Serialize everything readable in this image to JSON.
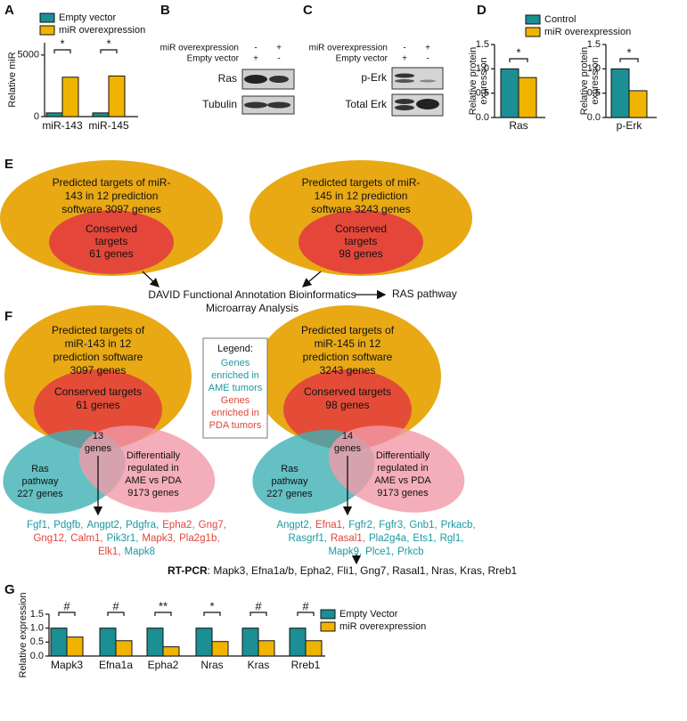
{
  "chart_data": [
    {
      "type": "bar",
      "panel": "A",
      "y_label": "Relative miR",
      "categories": [
        "miR-143",
        "miR-145"
      ],
      "series": [
        {
          "name": "Empty vector",
          "color": "#1b8f93",
          "values": [
            300,
            300
          ]
        },
        {
          "name": "miR overexpression",
          "color": "#f0b400",
          "values": [
            3200,
            3300
          ]
        }
      ],
      "ylim": [
        0,
        6000
      ],
      "yticks": [
        0,
        5000
      ],
      "annotations": [
        "*",
        "*"
      ],
      "legend": "top-left"
    },
    {
      "type": "bar",
      "panel": "D",
      "y_label": [
        "Relative protein",
        "expression"
      ],
      "categories": [
        "Ras"
      ],
      "series": [
        {
          "name": "Control",
          "color": "#1b8f93",
          "values": [
            1.0
          ]
        },
        {
          "name": "miR overexpression",
          "color": "#f0b400",
          "values": [
            0.82
          ]
        }
      ],
      "ylim": [
        0,
        1.5
      ],
      "yticks": [
        {
          "value": 0,
          "label": "0.0"
        },
        {
          "value": 0.5,
          "label": "0.5"
        },
        {
          "value": 1,
          "label": "1.0"
        },
        {
          "value": 1.5,
          "label": "1.5"
        }
      ],
      "annotations": [
        "*"
      ],
      "legend": "top-right"
    },
    {
      "type": "bar",
      "y_label": [
        "Relative protein",
        "expression"
      ],
      "categories": [
        "p-Erk"
      ],
      "series": [
        {
          "color": "#1b8f93",
          "values": [
            1.0
          ]
        },
        {
          "color": "#f0b400",
          "values": [
            0.55
          ]
        }
      ],
      "ylim": [
        0,
        1.5
      ],
      "yticks": [
        {
          "value": 0,
          "label": "0.0"
        },
        {
          "value": 0.5,
          "label": "0.5"
        },
        {
          "value": 1,
          "label": "1.0"
        },
        {
          "value": 1.5,
          "label": "1.5"
        }
      ],
      "annotations": [
        "*"
      ]
    },
    {
      "type": "bar",
      "panel": "G",
      "y_label": "Relative expression",
      "categories": [
        "Mapk3",
        "Efna1a",
        "Epha2",
        "Nras",
        "Kras",
        "Rreb1"
      ],
      "series": [
        {
          "name": "Empty Vector",
          "color": "#1b8f93",
          "values": [
            1.0,
            1.0,
            1.0,
            1.0,
            1.0,
            1.0
          ]
        },
        {
          "name": "miR overexpression",
          "color": "#f0b400",
          "values": [
            0.68,
            0.55,
            0.33,
            0.52,
            0.55,
            0.55
          ]
        }
      ],
      "ylim": [
        0,
        1.5
      ],
      "yticks": [
        {
          "value": 0,
          "label": "0.0"
        },
        {
          "value": 0.5,
          "label": "0.5"
        },
        {
          "value": 1,
          "label": "1.0"
        },
        {
          "value": 1.5,
          "label": "1.5"
        }
      ],
      "annotations": [
        "#",
        "#",
        "**",
        "*",
        "#",
        "#"
      ],
      "legend": "right"
    }
  ],
  "panel_B": {
    "label": "B",
    "conditions": [
      {
        "name": "miR overexpression",
        "signs": [
          "-",
          "+"
        ]
      },
      {
        "name": "Empty vector",
        "signs": [
          "+",
          "-"
        ]
      }
    ],
    "bands": [
      "Ras",
      "Tubulin"
    ]
  },
  "panel_C": {
    "label": "C",
    "conditions": [
      {
        "name": "miR overexpression",
        "signs": [
          "-",
          "+"
        ]
      },
      {
        "name": "Empty vector",
        "signs": [
          "+",
          "-"
        ]
      }
    ],
    "bands": [
      "p-Erk",
      "Total Erk"
    ]
  },
  "panel_E": {
    "label": "E",
    "sets": [
      {
        "outer": [
          "Predicted targets of miR-",
          "143 in 12 prediction",
          "software 3097 genes"
        ],
        "inner": [
          "Conserved",
          "targets",
          "61 genes"
        ]
      },
      {
        "outer": [
          "Predicted targets of miR-",
          "145 in 12 prediction",
          "software 3243 genes"
        ],
        "inner": [
          "Conserved",
          "targets",
          "98 genes"
        ]
      }
    ],
    "analysis": [
      "DAVID Functional Annotation Bioinformatics",
      "Microarray Analysis"
    ],
    "result": "RAS pathway"
  },
  "panel_F": {
    "label": "F",
    "legend": {
      "title": "Legend:",
      "groups": [
        {
          "lines": [
            "Genes",
            "enriched in",
            "AME tumors"
          ],
          "color": "#1a9aa0"
        },
        {
          "lines": [
            "Genes",
            "enriched in",
            "PDA tumors"
          ],
          "color": "#e0463c"
        }
      ]
    },
    "venns": [
      {
        "predicted": [
          "Predicted targets of",
          "miR-143 in 12",
          "prediction software",
          "3097 genes"
        ],
        "conserved": [
          "Conserved targets",
          "61 genes"
        ],
        "overlap": [
          "13",
          "genes"
        ],
        "ras": [
          "Ras",
          "pathway",
          "227 genes"
        ],
        "diff": [
          "Differentially",
          "regulated in",
          "AME vs PDA",
          "9173 genes"
        ],
        "genes": [
          [
            {
              "name": "Fgf1,",
              "group": 0
            },
            {
              "name": "Pdgfb,",
              "group": 0
            },
            {
              "name": "Angpt2,",
              "group": 0
            },
            {
              "name": "Pdgfra,",
              "group": 0
            },
            {
              "name": "Epha2,",
              "group": 1
            },
            {
              "name": "Gng7,",
              "group": 1
            }
          ],
          [
            {
              "name": "Gng12,",
              "group": 1
            },
            {
              "name": "Calm1,",
              "group": 1
            },
            {
              "name": "Pik3r1,",
              "group": 0
            },
            {
              "name": "Mapk3,",
              "group": 1
            },
            {
              "name": "Pla2g1b,",
              "group": 1
            }
          ],
          [
            {
              "name": "Elk1,",
              "group": 1
            },
            {
              "name": "Mapk8",
              "group": 0
            }
          ]
        ]
      },
      {
        "predicted": [
          "Predicted targets of",
          "miR-145 in 12",
          "prediction software",
          "3243 genes"
        ],
        "conserved": [
          "Conserved targets",
          "98 genes"
        ],
        "overlap": [
          "14",
          "genes"
        ],
        "ras": [
          "Ras",
          "pathway",
          "227 genes"
        ],
        "diff": [
          "Differentially",
          "regulated in",
          "AME vs PDA",
          "9173 genes"
        ],
        "genes": [
          [
            {
              "name": "Angpt2,",
              "group": 0
            },
            {
              "name": "Efna1,",
              "group": 1
            },
            {
              "name": "Fgfr2,",
              "group": 0
            },
            {
              "name": "Fgfr3,",
              "group": 0
            },
            {
              "name": "Gnb1,",
              "group": 0
            },
            {
              "name": "Prkacb,",
              "group": 0
            }
          ],
          [
            {
              "name": "Rasgrf1,",
              "group": 0
            },
            {
              "name": "Rasal1,",
              "group": 1
            },
            {
              "name": "Pla2g4a,",
              "group": 0
            },
            {
              "name": "Ets1,",
              "group": 0
            },
            {
              "name": "Rgl1,",
              "group": 0
            }
          ],
          [
            {
              "name": "Mapk9,",
              "group": 0
            },
            {
              "name": "Plce1,",
              "group": 0
            },
            {
              "name": "Prkcb",
              "group": 0
            }
          ]
        ]
      }
    ],
    "rt_pcr": {
      "label": "RT-PCR",
      "text": ": Mapk3, Efna1a/b, Epha2, Fli1, Gng7, Rasal1, Nras, Kras, Rreb1"
    }
  }
}
